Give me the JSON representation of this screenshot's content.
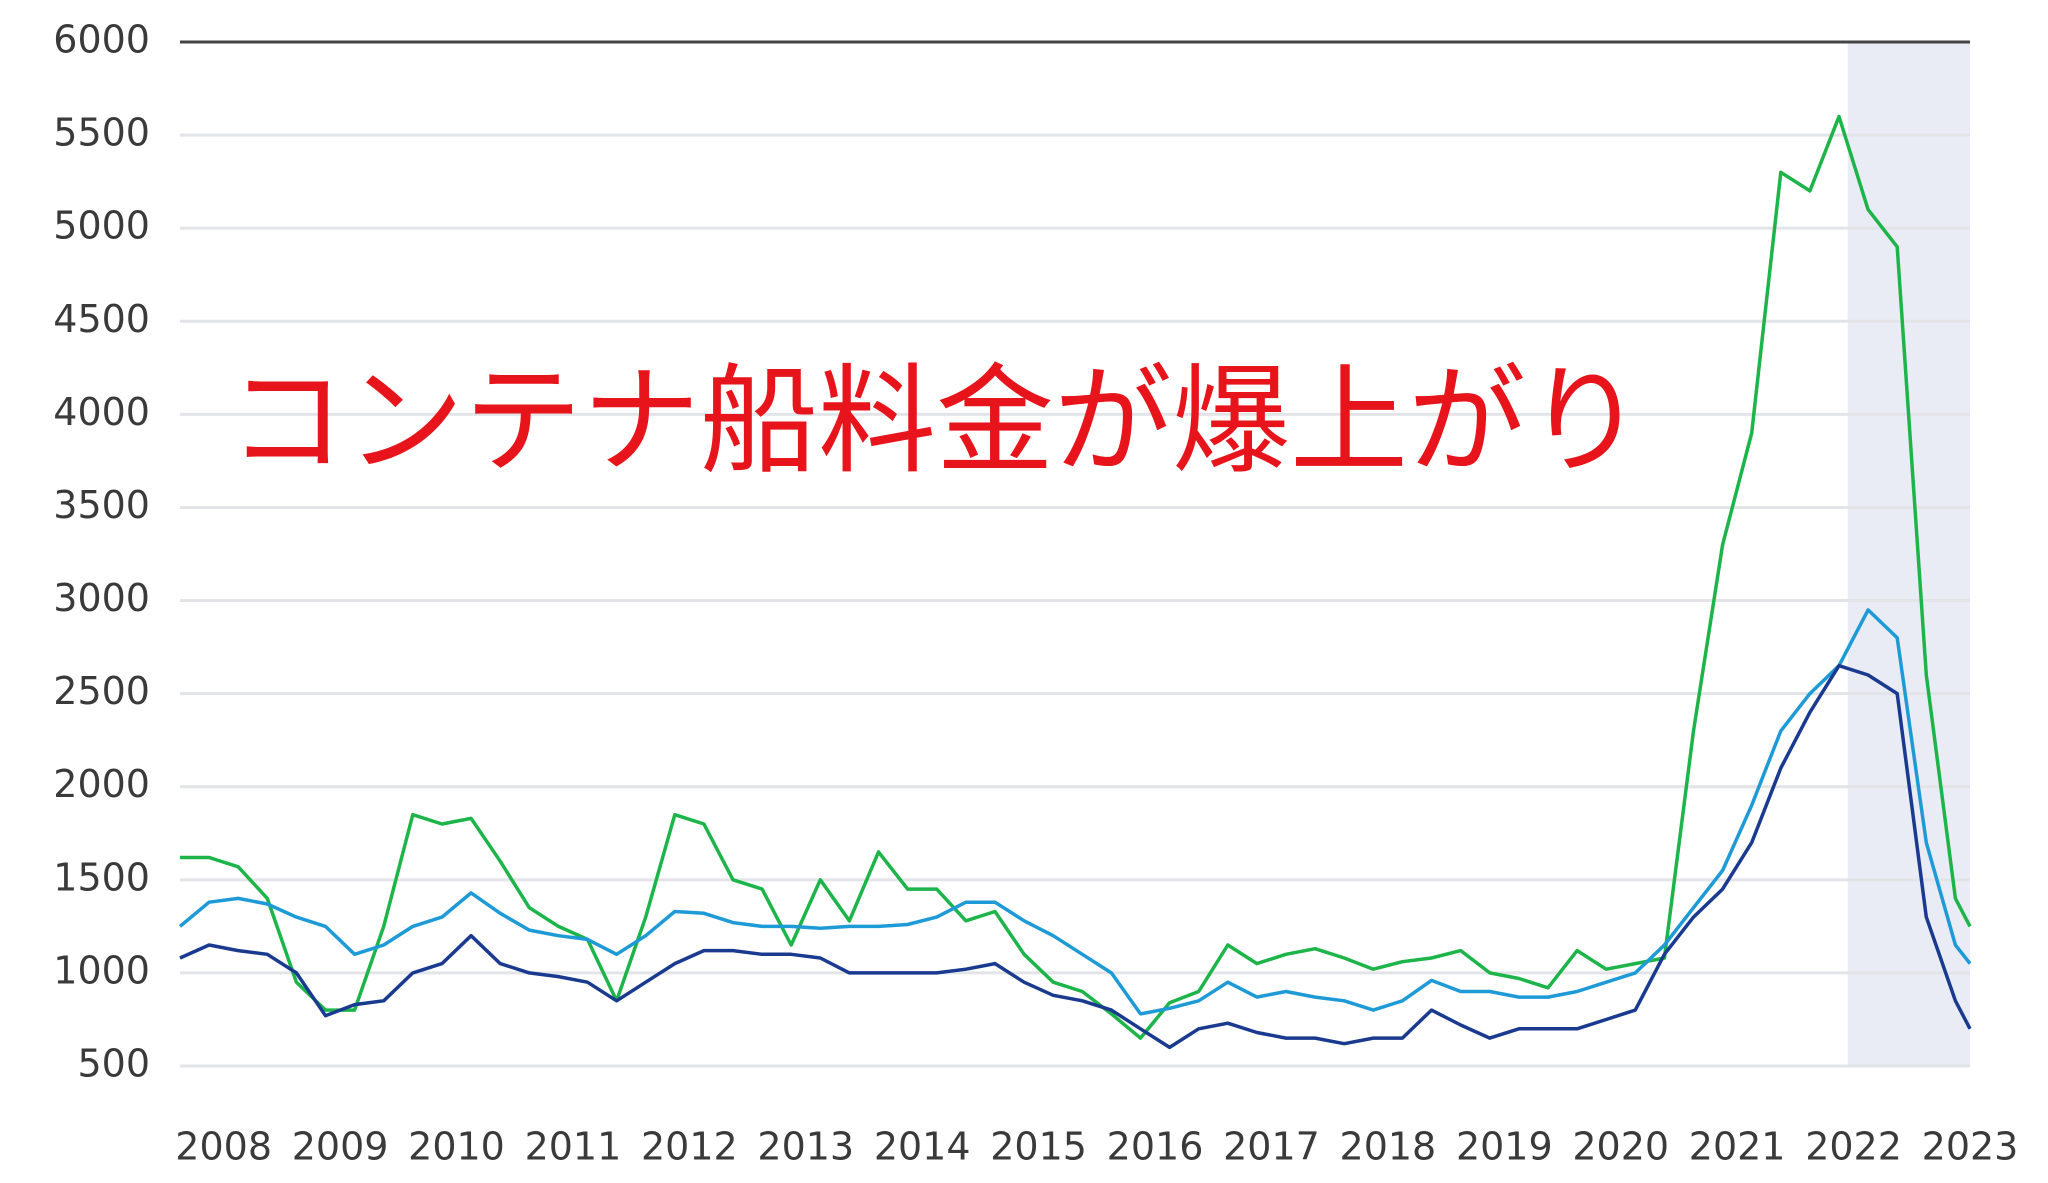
{
  "chart_data": {
    "type": "line",
    "annotation": "コンテナ船料金が爆上がり",
    "x": [
      2007.625,
      2007.875,
      2008.125,
      2008.375,
      2008.625,
      2008.875,
      2009.125,
      2009.375,
      2009.625,
      2009.875,
      2010.125,
      2010.375,
      2010.625,
      2010.875,
      2011.125,
      2011.375,
      2011.625,
      2011.875,
      2012.125,
      2012.375,
      2012.625,
      2012.875,
      2013.125,
      2013.375,
      2013.625,
      2013.875,
      2014.125,
      2014.375,
      2014.625,
      2014.875,
      2015.125,
      2015.375,
      2015.625,
      2015.875,
      2016.125,
      2016.375,
      2016.625,
      2016.875,
      2017.125,
      2017.375,
      2017.625,
      2017.875,
      2018.125,
      2018.375,
      2018.625,
      2018.875,
      2019.125,
      2019.375,
      2019.625,
      2019.875,
      2020.125,
      2020.375,
      2020.625,
      2020.875,
      2021.125,
      2021.375,
      2021.625,
      2021.875,
      2022.125,
      2022.375,
      2022.625,
      2022.875,
      2023.0
    ],
    "series": [
      {
        "color": "#1db44a",
        "values": [
          1620,
          1620,
          1570,
          1400,
          950,
          800,
          800,
          1250,
          1850,
          1800,
          1830,
          1600,
          1350,
          1250,
          1180,
          850,
          1300,
          1850,
          1800,
          1500,
          1450,
          1150,
          1500,
          1280,
          1650,
          1450,
          1450,
          1280,
          1330,
          1100,
          950,
          900,
          780,
          650,
          840,
          900,
          1150,
          1050,
          1100,
          1130,
          1080,
          1020,
          1060,
          1080,
          1120,
          1000,
          970,
          920,
          1120,
          1020,
          1050,
          1080,
          2300,
          3300,
          3900,
          5300,
          5200,
          5600,
          5100,
          4900,
          2600,
          1400,
          1250
        ]
      },
      {
        "color": "#1e9ad6",
        "values": [
          1250,
          1380,
          1400,
          1370,
          1300,
          1250,
          1100,
          1150,
          1250,
          1300,
          1430,
          1320,
          1230,
          1200,
          1180,
          1100,
          1200,
          1330,
          1320,
          1270,
          1250,
          1250,
          1240,
          1250,
          1250,
          1260,
          1300,
          1380,
          1380,
          1280,
          1200,
          1100,
          1000,
          780,
          810,
          850,
          950,
          870,
          900,
          870,
          850,
          800,
          850,
          960,
          900,
          900,
          870,
          870,
          900,
          950,
          1000,
          1150,
          1350,
          1550,
          1900,
          2300,
          2500,
          2650,
          2950,
          2800,
          1700,
          1150,
          1050
        ]
      },
      {
        "color": "#1a3a8f",
        "values": [
          1080,
          1150,
          1120,
          1100,
          1000,
          770,
          830,
          850,
          1000,
          1050,
          1200,
          1050,
          1000,
          980,
          950,
          850,
          950,
          1050,
          1120,
          1120,
          1100,
          1100,
          1080,
          1000,
          1000,
          1000,
          1000,
          1020,
          1050,
          950,
          880,
          850,
          800,
          700,
          600,
          700,
          730,
          680,
          650,
          650,
          620,
          650,
          650,
          800,
          720,
          650,
          700,
          700,
          700,
          750,
          800,
          1100,
          1300,
          1450,
          1700,
          2100,
          2400,
          2650,
          2600,
          2500,
          1300,
          850,
          700
        ]
      }
    ],
    "xlim": [
      2007.625,
      2023.0
    ],
    "xticks": [
      2008,
      2009,
      2010,
      2011,
      2012,
      2013,
      2014,
      2015,
      2016,
      2017,
      2018,
      2019,
      2020,
      2021,
      2022,
      2023
    ],
    "ylim": [
      500,
      6000
    ],
    "yticks": [
      500,
      1000,
      1500,
      2000,
      2500,
      3000,
      3500,
      4000,
      4500,
      5000,
      5500,
      6000
    ],
    "grid": true,
    "shaded_range": [
      2021.95,
      2023.0
    ]
  }
}
